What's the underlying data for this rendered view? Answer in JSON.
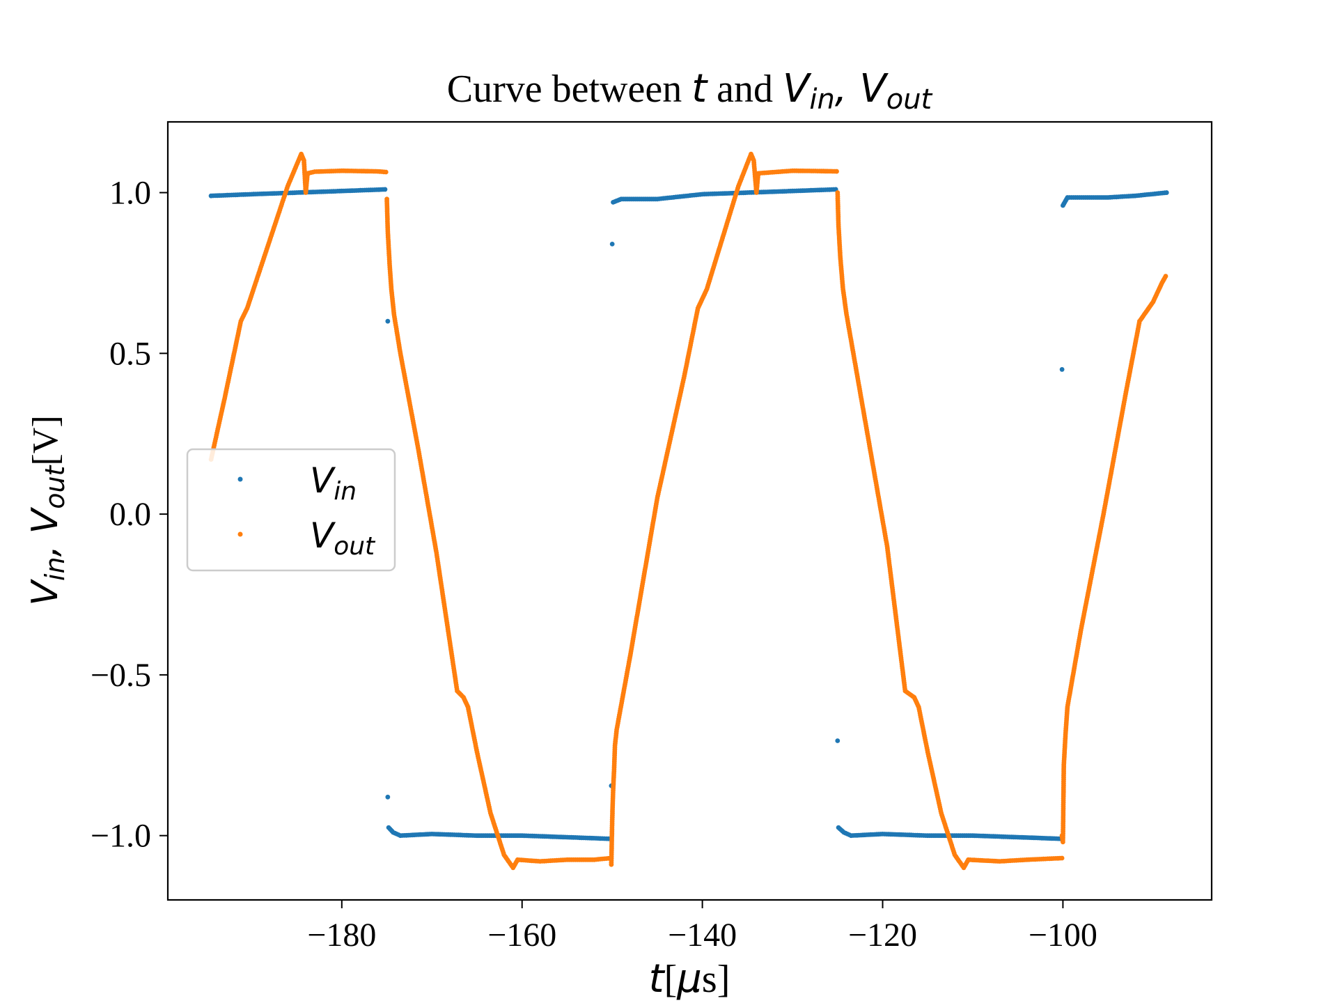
{
  "chart_data": {
    "type": "scatter",
    "title": {
      "prefix": "Curve between ",
      "var_t": "t",
      "mid": " and ",
      "v1_base": "V",
      "v1_sub": "in",
      "sep": ", ",
      "v2_base": "V",
      "v2_sub": "out"
    },
    "xlabel": {
      "var": "t",
      "open": "[",
      "mu": "μ",
      "unit": "s",
      "close": "]"
    },
    "ylabel": {
      "v1_base": "V",
      "v1_sub": "in",
      "sep": ", ",
      "v2_base": "V",
      "v2_sub": "out",
      "unit": "[V]"
    },
    "xlim": [
      -199.3,
      -83.5
    ],
    "ylim": [
      -1.2,
      1.22
    ],
    "xticks": [
      {
        "value": -180,
        "label": "−180"
      },
      {
        "value": -160,
        "label": "−160"
      },
      {
        "value": -140,
        "label": "−140"
      },
      {
        "value": -120,
        "label": "−120"
      },
      {
        "value": -100,
        "label": "−100"
      }
    ],
    "yticks": [
      {
        "value": 1.0,
        "label": "1.0"
      },
      {
        "value": 0.5,
        "label": "0.5"
      },
      {
        "value": 0.0,
        "label": "0.0"
      },
      {
        "value": -0.5,
        "label": "−0.5"
      },
      {
        "value": -1.0,
        "label": "−1.0"
      }
    ],
    "grid": false,
    "legend_position": "center-left",
    "series": [
      {
        "name_base": "V",
        "name_sub": "in",
        "color": "#1f77b4",
        "segments": [
          {
            "points": [
              [
                -194.5,
                0.99
              ],
              [
                -190,
                0.995
              ],
              [
                -185,
                1.0
              ],
              [
                -180,
                1.005
              ],
              [
                -175.2,
                1.01
              ]
            ]
          },
          {
            "points": [
              [
                -174.9,
                0.6
              ]
            ]
          },
          {
            "points": [
              [
                -174.9,
                -0.88
              ]
            ]
          },
          {
            "points": [
              [
                -174.8,
                -0.975
              ],
              [
                -174.3,
                -0.99
              ],
              [
                -173.5,
                -1.0
              ],
              [
                -170,
                -0.995
              ],
              [
                -165,
                -1.0
              ],
              [
                -160,
                -1.0
              ],
              [
                -155,
                -1.005
              ],
              [
                -150.2,
                -1.01
              ]
            ]
          },
          {
            "points": [
              [
                -150.1,
                -0.845
              ]
            ]
          },
          {
            "points": [
              [
                -150.0,
                0.84
              ]
            ]
          },
          {
            "points": [
              [
                -149.9,
                0.97
              ],
              [
                -149,
                0.98
              ],
              [
                -145,
                0.98
              ],
              [
                -140,
                0.995
              ],
              [
                -135,
                1.0
              ],
              [
                -130,
                1.005
              ],
              [
                -125.2,
                1.01
              ]
            ]
          },
          {
            "points": [
              [
                -125.0,
                -0.705
              ]
            ]
          },
          {
            "points": [
              [
                -124.9,
                -0.975
              ],
              [
                -124.3,
                -0.99
              ],
              [
                -123.5,
                -1.0
              ],
              [
                -120,
                -0.995
              ],
              [
                -115,
                -1.0
              ],
              [
                -110,
                -1.0
              ],
              [
                -105,
                -1.005
              ],
              [
                -100.1,
                -1.01
              ]
            ]
          },
          {
            "points": [
              [
                -100.1,
                0.45
              ]
            ]
          },
          {
            "points": [
              [
                -100.0,
                0.96
              ],
              [
                -99.5,
                0.985
              ],
              [
                -95,
                0.985
              ],
              [
                -92,
                0.99
              ],
              [
                -88.5,
                1.0
              ]
            ]
          }
        ]
      },
      {
        "name_base": "V",
        "name_sub": "out",
        "color": "#ff7f0e",
        "segments": [
          {
            "points": [
              [
                -194.5,
                0.17
              ],
              [
                -193,
                0.36
              ],
              [
                -191.2,
                0.6
              ],
              [
                -190.5,
                0.64
              ],
              [
                -186,
                1.02
              ],
              [
                -184.5,
                1.12
              ],
              [
                -184.2,
                1.1
              ],
              [
                -184,
                1.0
              ],
              [
                -183.8,
                1.06
              ],
              [
                -183,
                1.065
              ],
              [
                -180,
                1.068
              ],
              [
                -178,
                1.067
              ],
              [
                -176,
                1.066
              ],
              [
                -175.1,
                1.064
              ]
            ]
          },
          {
            "points": [
              [
                -175.0,
                0.98
              ],
              [
                -174.9,
                0.88
              ],
              [
                -174.7,
                0.78
              ],
              [
                -174.5,
                0.7
              ],
              [
                -174.2,
                0.62
              ],
              [
                -173.5,
                0.5
              ],
              [
                -171.5,
                0.2
              ],
              [
                -169.5,
                -0.12
              ],
              [
                -167.2,
                -0.55
              ],
              [
                -166.5,
                -0.57
              ],
              [
                -166,
                -0.6
              ],
              [
                -165,
                -0.74
              ],
              [
                -163.5,
                -0.93
              ],
              [
                -162,
                -1.06
              ],
              [
                -161,
                -1.1
              ],
              [
                -160.5,
                -1.075
              ],
              [
                -158,
                -1.08
              ],
              [
                -155,
                -1.075
              ],
              [
                -152,
                -1.075
              ],
              [
                -150.2,
                -1.07
              ]
            ]
          },
          {
            "points": [
              [
                -150.1,
                -1.09
              ],
              [
                -150.0,
                -0.95
              ],
              [
                -149.9,
                -0.86
              ],
              [
                -149.8,
                -0.8
              ],
              [
                -149.7,
                -0.72
              ],
              [
                -149.5,
                -0.67
              ],
              [
                -148,
                -0.44
              ],
              [
                -145,
                0.05
              ],
              [
                -142,
                0.43
              ],
              [
                -140.5,
                0.64
              ],
              [
                -139.5,
                0.7
              ],
              [
                -136,
                1.02
              ],
              [
                -134.6,
                1.12
              ],
              [
                -134.3,
                1.1
              ],
              [
                -134,
                1.0
              ],
              [
                -133.8,
                1.06
              ],
              [
                -130,
                1.068
              ],
              [
                -127,
                1.067
              ],
              [
                -125.1,
                1.066
              ]
            ]
          },
          {
            "points": [
              [
                -125.0,
                1.0
              ],
              [
                -124.9,
                0.9
              ],
              [
                -124.7,
                0.8
              ],
              [
                -124.4,
                0.7
              ],
              [
                -124,
                0.62
              ],
              [
                -122,
                0.3
              ],
              [
                -119.5,
                -0.1
              ],
              [
                -117.5,
                -0.55
              ],
              [
                -116.5,
                -0.57
              ],
              [
                -116,
                -0.6
              ],
              [
                -115,
                -0.74
              ],
              [
                -113.5,
                -0.93
              ],
              [
                -112,
                -1.06
              ],
              [
                -111,
                -1.1
              ],
              [
                -110.5,
                -1.075
              ],
              [
                -107,
                -1.08
              ],
              [
                -104,
                -1.075
              ],
              [
                -100.1,
                -1.07
              ]
            ]
          },
          {
            "points": [
              [
                -100.1,
                -1.0
              ],
              [
                -100.0,
                -1.02
              ],
              [
                -99.9,
                -0.78
              ],
              [
                -99.7,
                -0.68
              ],
              [
                -99.5,
                -0.6
              ],
              [
                -98,
                -0.36
              ],
              [
                -95.5,
                0.0
              ],
              [
                -93,
                0.38
              ],
              [
                -91.5,
                0.6
              ],
              [
                -90,
                0.66
              ],
              [
                -89,
                0.72
              ],
              [
                -88.6,
                0.74
              ]
            ]
          }
        ]
      }
    ]
  }
}
